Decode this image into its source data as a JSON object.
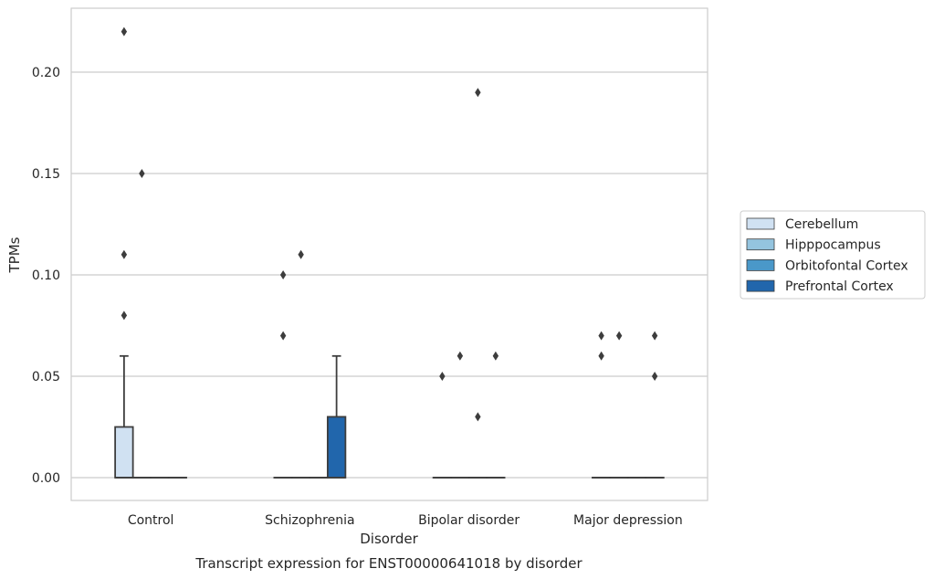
{
  "chart_data": {
    "type": "box",
    "title": "",
    "caption": "Transcript expression for ENST00000641018 by disorder",
    "xlabel": "Disorder",
    "ylabel": "TPMs",
    "categories": [
      "Control",
      "Schizophrenia",
      "Bipolar disorder",
      "Major depression"
    ],
    "ylim": [
      -0.011,
      0.232
    ],
    "yticks": [
      "0.00",
      "0.05",
      "0.10",
      "0.15",
      "0.20"
    ],
    "grid": true,
    "legend_position": "right",
    "series": [
      {
        "name": "Cerebellum",
        "color": "#d0e1f2",
        "boxes": [
          {
            "q1": 0.0,
            "median": 0.0,
            "q3": 0.025,
            "whisker_low": 0.0,
            "whisker_high": 0.06,
            "outliers": [
              0.08,
              0.11,
              0.22
            ]
          },
          {
            "q1": 0.0,
            "median": 0.0,
            "q3": 0.0,
            "whisker_low": 0.0,
            "whisker_high": 0.0,
            "outliers": [
              0.07,
              0.1
            ]
          },
          {
            "q1": 0.0,
            "median": 0.0,
            "q3": 0.0,
            "whisker_low": 0.0,
            "whisker_high": 0.0,
            "outliers": [
              0.05
            ]
          },
          {
            "q1": 0.0,
            "median": 0.0,
            "q3": 0.0,
            "whisker_low": 0.0,
            "whisker_high": 0.0,
            "outliers": [
              0.06,
              0.07
            ]
          }
        ]
      },
      {
        "name": "Hipppocampus",
        "color": "#94c4df",
        "boxes": [
          {
            "q1": 0.0,
            "median": 0.0,
            "q3": 0.0,
            "whisker_low": 0.0,
            "whisker_high": 0.0,
            "outliers": [
              0.15
            ]
          },
          {
            "q1": 0.0,
            "median": 0.0,
            "q3": 0.0,
            "whisker_low": 0.0,
            "whisker_high": 0.0,
            "outliers": [
              0.11
            ]
          },
          {
            "q1": 0.0,
            "median": 0.0,
            "q3": 0.0,
            "whisker_low": 0.0,
            "whisker_high": 0.0,
            "outliers": [
              0.06
            ]
          },
          {
            "q1": 0.0,
            "median": 0.0,
            "q3": 0.0,
            "whisker_low": 0.0,
            "whisker_high": 0.0,
            "outliers": [
              0.07
            ]
          }
        ]
      },
      {
        "name": "Orbitofontal Cortex",
        "color": "#4a98c9",
        "boxes": [
          {
            "q1": 0.0,
            "median": 0.0,
            "q3": 0.0,
            "whisker_low": 0.0,
            "whisker_high": 0.0,
            "outliers": []
          },
          {
            "q1": 0.0,
            "median": 0.0,
            "q3": 0.0,
            "whisker_low": 0.0,
            "whisker_high": 0.0,
            "outliers": []
          },
          {
            "q1": 0.0,
            "median": 0.0,
            "q3": 0.0,
            "whisker_low": 0.0,
            "whisker_high": 0.0,
            "outliers": [
              0.03,
              0.19
            ]
          },
          {
            "q1": 0.0,
            "median": 0.0,
            "q3": 0.0,
            "whisker_low": 0.0,
            "whisker_high": 0.0,
            "outliers": []
          }
        ]
      },
      {
        "name": "Prefrontal Cortex",
        "color": "#2166ac",
        "boxes": [
          {
            "q1": 0.0,
            "median": 0.0,
            "q3": 0.0,
            "whisker_low": 0.0,
            "whisker_high": 0.0,
            "outliers": []
          },
          {
            "q1": 0.0,
            "median": 0.0,
            "q3": 0.03,
            "whisker_low": 0.0,
            "whisker_high": 0.06,
            "outliers": []
          },
          {
            "q1": 0.0,
            "median": 0.0,
            "q3": 0.0,
            "whisker_low": 0.0,
            "whisker_high": 0.0,
            "outliers": [
              0.06
            ]
          },
          {
            "q1": 0.0,
            "median": 0.0,
            "q3": 0.0,
            "whisker_low": 0.0,
            "whisker_high": 0.0,
            "outliers": [
              0.05,
              0.07
            ]
          }
        ]
      }
    ]
  }
}
